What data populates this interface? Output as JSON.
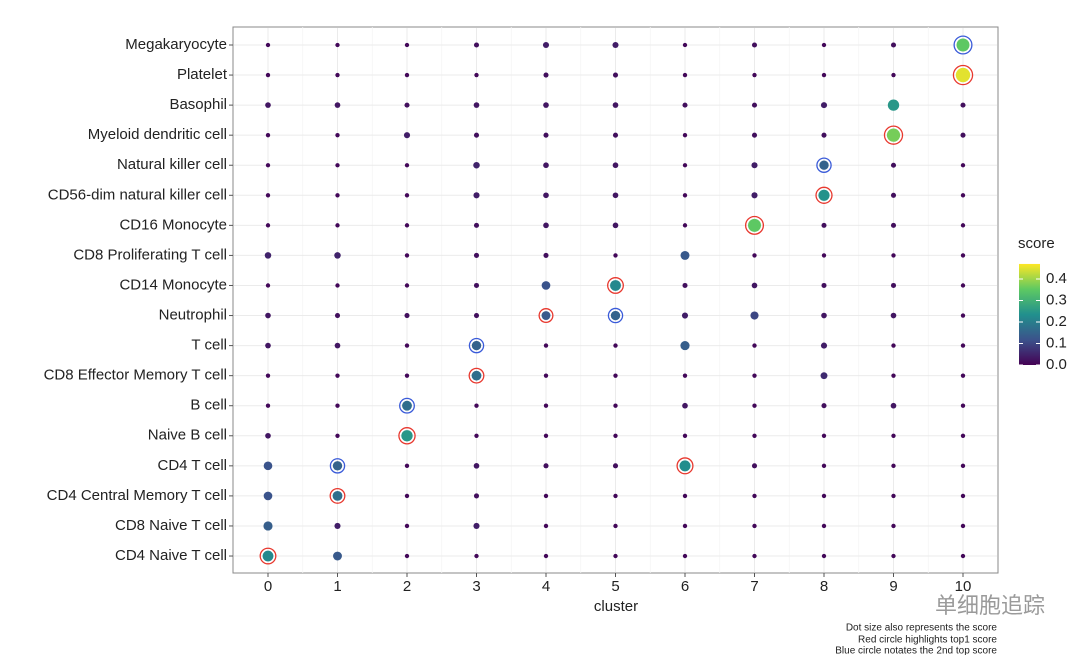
{
  "chart_data": {
    "type": "dot",
    "x_label": "cluster",
    "legend_title": "score",
    "x": [
      0,
      1,
      2,
      3,
      4,
      5,
      6,
      7,
      8,
      9,
      10
    ],
    "categories": [
      "Megakaryocyte",
      "Platelet",
      "Basophil",
      "Myeloid dendritic cell",
      "Natural killer cell",
      "CD56-dim natural killer cell",
      "CD16 Monocyte",
      "CD8 Proliferating T cell",
      "CD14 Monocyte",
      "Neutrophil",
      "T cell",
      "CD8 Effector Memory T cell",
      "B cell",
      "Naive B cell",
      "CD4 T cell",
      "CD4 Central Memory T cell",
      "CD8 Naive T cell",
      "CD4 Naive T cell"
    ],
    "values": [
      [
        0.01,
        0.01,
        0.01,
        0.02,
        0.04,
        0.04,
        0.01,
        0.02,
        0.01,
        0.02,
        0.35
      ],
      [
        0.01,
        0.01,
        0.01,
        0.01,
        0.02,
        0.02,
        0.01,
        0.01,
        0.01,
        0.01,
        0.45
      ],
      [
        0.03,
        0.03,
        0.02,
        0.03,
        0.03,
        0.03,
        0.02,
        0.02,
        0.04,
        0.25,
        0.02
      ],
      [
        0.01,
        0.01,
        0.04,
        0.02,
        0.02,
        0.02,
        0.01,
        0.02,
        0.02,
        0.37,
        0.02
      ],
      [
        0.01,
        0.01,
        0.01,
        0.05,
        0.03,
        0.03,
        0.01,
        0.04,
        0.15,
        0.02,
        0.01
      ],
      [
        0.01,
        0.01,
        0.01,
        0.04,
        0.03,
        0.03,
        0.01,
        0.04,
        0.24,
        0.02,
        0.01
      ],
      [
        0.01,
        0.01,
        0.01,
        0.02,
        0.03,
        0.03,
        0.01,
        0.35,
        0.02,
        0.02,
        0.01
      ],
      [
        0.05,
        0.05,
        0.01,
        0.02,
        0.02,
        0.01,
        0.13,
        0.01,
        0.01,
        0.01,
        0.01
      ],
      [
        0.01,
        0.01,
        0.01,
        0.02,
        0.12,
        0.22,
        0.02,
        0.03,
        0.02,
        0.02,
        0.01
      ],
      [
        0.03,
        0.02,
        0.02,
        0.02,
        0.13,
        0.15,
        0.04,
        0.1,
        0.03,
        0.03,
        0.01
      ],
      [
        0.03,
        0.03,
        0.01,
        0.15,
        0.01,
        0.01,
        0.14,
        0.01,
        0.04,
        0.01,
        0.01
      ],
      [
        0.01,
        0.01,
        0.01,
        0.17,
        0.01,
        0.01,
        0.01,
        0.01,
        0.06,
        0.01,
        0.01
      ],
      [
        0.01,
        0.01,
        0.17,
        0.01,
        0.01,
        0.01,
        0.03,
        0.01,
        0.02,
        0.03,
        0.01
      ],
      [
        0.03,
        0.01,
        0.25,
        0.01,
        0.01,
        0.01,
        0.01,
        0.01,
        0.01,
        0.01,
        0.01
      ],
      [
        0.12,
        0.15,
        0.01,
        0.03,
        0.02,
        0.02,
        0.23,
        0.02,
        0.01,
        0.01,
        0.01
      ],
      [
        0.12,
        0.17,
        0.01,
        0.02,
        0.01,
        0.01,
        0.01,
        0.01,
        0.01,
        0.01,
        0.01
      ],
      [
        0.14,
        0.04,
        0.01,
        0.04,
        0.01,
        0.01,
        0.01,
        0.01,
        0.01,
        0.01,
        0.01
      ],
      [
        0.22,
        0.13,
        0.01,
        0.01,
        0.01,
        0.01,
        0.01,
        0.01,
        0.01,
        0.01,
        0.01
      ]
    ],
    "top1": [
      17,
      15,
      13,
      11,
      9,
      8,
      14,
      6,
      5,
      3,
      1
    ],
    "top2": [
      null,
      14,
      12,
      10,
      null,
      9,
      null,
      null,
      4,
      null,
      0
    ],
    "top1_color": "#e8382e",
    "top2_color": "#3a5bd9",
    "colormap": [
      "#440154",
      "#3b528b",
      "#21908d",
      "#5ec962",
      "#fde725"
    ],
    "clim": [
      0,
      0.47
    ],
    "cticks": [
      {
        "value": 0,
        "label": "0.0"
      },
      0.1,
      0.2,
      0.3,
      0.4
    ],
    "grid": true,
    "notes": [
      "Dot size also represents the score",
      "Red circle highlights top1 score",
      "Blue circle notates the 2nd top score"
    ],
    "watermark": "单细胞追踪"
  }
}
